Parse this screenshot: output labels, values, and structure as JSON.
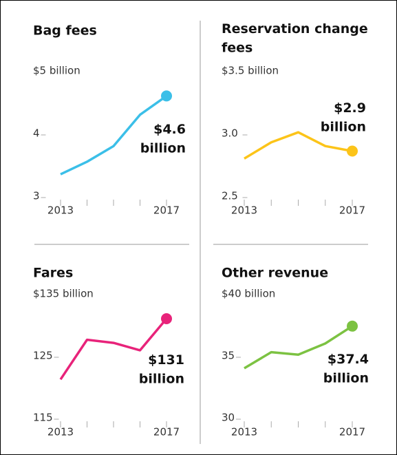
{
  "chart_data": [
    {
      "type": "line",
      "title": "Bag fees",
      "x": [
        2013,
        2014,
        2015,
        2016,
        2017
      ],
      "series": [
        {
          "color": "#3bbfe8",
          "values": [
            3.35,
            3.55,
            3.8,
            4.3,
            4.6
          ],
          "value_labels": [
            null,
            null,
            null,
            null,
            "$4.6 billion"
          ]
        }
      ],
      "xlim": [
        2013,
        2017
      ],
      "xticks": [
        2013,
        2017
      ],
      "ylim": [
        3,
        5
      ],
      "yticks": [
        {
          "value": 5,
          "label": "$5 billion"
        },
        4,
        3
      ]
    },
    {
      "type": "line",
      "title": "Reservation change fees",
      "x": [
        2013,
        2014,
        2015,
        2016,
        2017
      ],
      "series": [
        {
          "color": "#fcc419",
          "values": [
            2.8,
            2.93,
            3.01,
            2.9,
            2.86
          ],
          "value_labels": [
            null,
            null,
            null,
            null,
            "$2.9 billion"
          ]
        }
      ],
      "xlim": [
        2013,
        2017
      ],
      "xticks": [
        2013,
        2017
      ],
      "ylim": [
        2.5,
        3.5
      ],
      "yticks": [
        {
          "value": 3.5,
          "label": "$3.5 billion"
        },
        {
          "value": 3,
          "label": "3.0"
        },
        2.5
      ]
    },
    {
      "type": "line",
      "title": "Fares",
      "x": [
        2013,
        2014,
        2015,
        2016,
        2017
      ],
      "series": [
        {
          "color": "#e8237a",
          "values": [
            121.2,
            127.6,
            127.1,
            125.9,
            131
          ],
          "value_labels": [
            null,
            null,
            null,
            null,
            "$131 billion"
          ]
        }
      ],
      "xlim": [
        2013,
        2017
      ],
      "xticks": [
        2013,
        2017
      ],
      "ylim": [
        115,
        135
      ],
      "yticks": [
        {
          "value": 135,
          "label": "$135 billion"
        },
        125,
        115
      ]
    },
    {
      "type": "line",
      "title": "Other revenue",
      "x": [
        2013,
        2014,
        2015,
        2016,
        2017
      ],
      "series": [
        {
          "color": "#7cc242",
          "values": [
            34.0,
            35.3,
            35.1,
            36.0,
            37.4
          ],
          "value_labels": [
            null,
            null,
            null,
            null,
            "$37.4 billion"
          ]
        }
      ],
      "xlim": [
        2013,
        2017
      ],
      "xticks": [
        2013,
        2017
      ],
      "ylim": [
        30,
        40
      ],
      "yticks": [
        {
          "value": 40,
          "label": "$40 billion"
        },
        35,
        30
      ]
    }
  ]
}
